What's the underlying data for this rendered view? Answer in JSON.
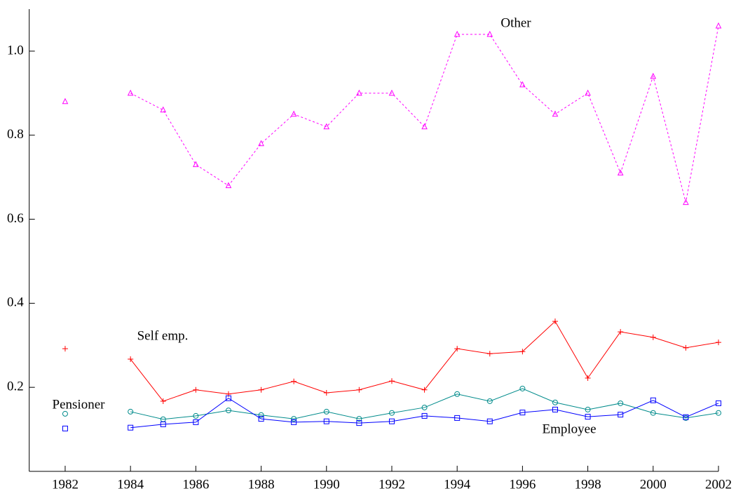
{
  "chart_data": {
    "type": "line",
    "x": [
      1982,
      1983,
      1984,
      1985,
      1986,
      1987,
      1988,
      1989,
      1990,
      1991,
      1992,
      1993,
      1994,
      1995,
      1996,
      1997,
      1998,
      1999,
      2000,
      2001,
      2002
    ],
    "series": [
      {
        "name": "Other",
        "color": "#ff00ff",
        "dashed": true,
        "marker": "triangle",
        "values": [
          0.88,
          null,
          0.9,
          0.86,
          0.73,
          0.68,
          0.78,
          0.85,
          0.82,
          0.9,
          0.9,
          0.82,
          1.04,
          1.04,
          0.92,
          0.85,
          0.9,
          0.71,
          0.94,
          0.64,
          1.06
        ]
      },
      {
        "name": "Self emp.",
        "color": "#ff0000",
        "dashed": false,
        "marker": "plus",
        "values": [
          0.292,
          null,
          0.267,
          0.167,
          0.194,
          0.184,
          0.194,
          0.214,
          0.187,
          0.194,
          0.215,
          0.194,
          0.292,
          0.28,
          0.285,
          0.357,
          0.222,
          0.332,
          0.319,
          0.294,
          0.307
        ]
      },
      {
        "name": "Pensioner",
        "color": "#008b8b",
        "dashed": false,
        "marker": "circle",
        "values": [
          0.137,
          null,
          0.142,
          0.124,
          0.132,
          0.145,
          0.134,
          0.125,
          0.142,
          0.125,
          0.139,
          0.152,
          0.184,
          0.167,
          0.197,
          0.164,
          0.147,
          0.162,
          0.139,
          0.127,
          0.139
        ]
      },
      {
        "name": "Employee",
        "color": "#0000ff",
        "dashed": false,
        "marker": "square",
        "values": [
          0.102,
          null,
          0.104,
          0.112,
          0.117,
          0.174,
          0.125,
          0.117,
          0.119,
          0.115,
          0.119,
          0.132,
          0.127,
          0.119,
          0.14,
          0.147,
          0.13,
          0.135,
          0.169,
          0.129,
          0.162
        ]
      }
    ],
    "xlim": [
      1980.9,
      2002
    ],
    "ylim": [
      0,
      1.1
    ],
    "xticks": [
      1982,
      1984,
      1986,
      1988,
      1990,
      1992,
      1994,
      1996,
      1998,
      2000,
      2002
    ],
    "yticks": [
      0.2,
      0.4,
      0.6,
      0.8,
      {
        "value": 1,
        "label": "1.0"
      }
    ],
    "grid": false
  }
}
